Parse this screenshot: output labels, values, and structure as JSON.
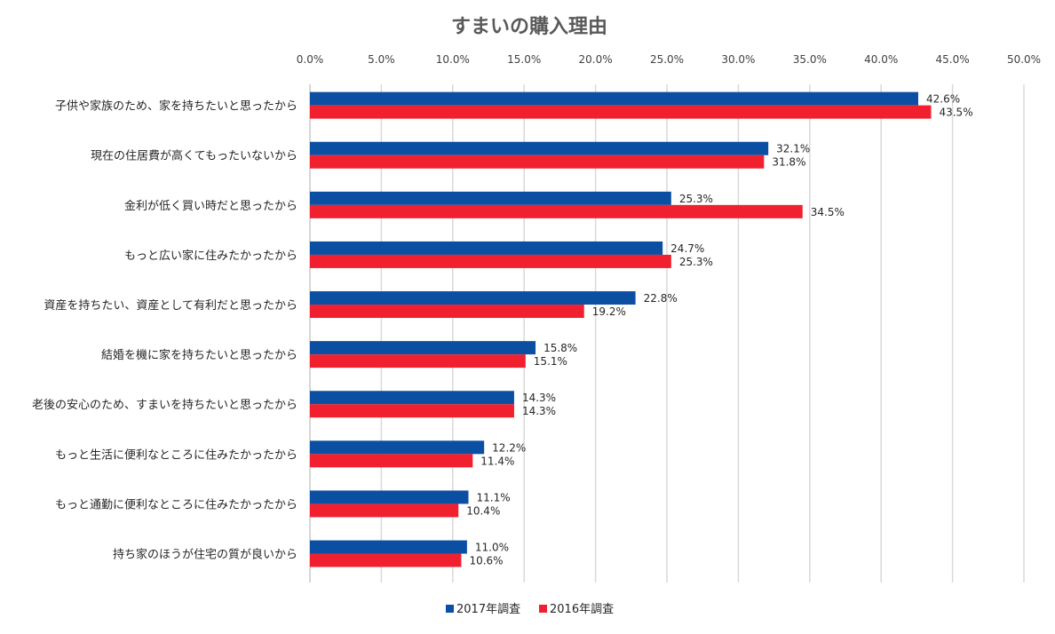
{
  "chart_data": {
    "type": "bar",
    "orientation": "horizontal",
    "title": "すまいの購入理由",
    "xlim": [
      0,
      50
    ],
    "x_ticks": [
      "0.0%",
      "5.0%",
      "10.0%",
      "15.0%",
      "20.0%",
      "25.0%",
      "30.0%",
      "35.0%",
      "40.0%",
      "45.0%",
      "50.0%"
    ],
    "x_axis_position": "top",
    "grid": true,
    "legend_position": "bottom",
    "categories": [
      "子供や家族のため、家を持ちたいと思ったから",
      "現在の住居費が高くてもったいないから",
      "金利が低く買い時だと思ったから",
      "もっと広い家に住みたかったから",
      "資産を持ちたい、資産として有利だと思ったから",
      "結婚を機に家を持ちたいと思ったから",
      "老後の安心のため、すまいを持ちたいと思ったから",
      "もっと生活に便利なところに住みたかったから",
      "もっと通勤に便利なところに住みたかったから",
      "持ち家のほうが住宅の質が良いから"
    ],
    "series": [
      {
        "name": "2017年調査",
        "color": "#0B4FA3",
        "values": [
          42.6,
          32.1,
          25.3,
          24.7,
          22.8,
          15.8,
          14.3,
          12.2,
          11.1,
          11.0
        ],
        "labels": [
          "42.6%",
          "32.1%",
          "25.3%",
          "24.7%",
          "22.8%",
          "15.8%",
          "14.3%",
          "12.2%",
          "11.1%",
          "11.0%"
        ]
      },
      {
        "name": "2016年調査",
        "color": "#F0202E",
        "values": [
          43.5,
          31.8,
          34.5,
          25.3,
          19.2,
          15.1,
          14.3,
          11.4,
          10.4,
          10.6
        ],
        "labels": [
          "43.5%",
          "31.8%",
          "34.5%",
          "25.3%",
          "19.2%",
          "15.1%",
          "14.3%",
          "11.4%",
          "10.4%",
          "10.6%"
        ]
      }
    ]
  }
}
